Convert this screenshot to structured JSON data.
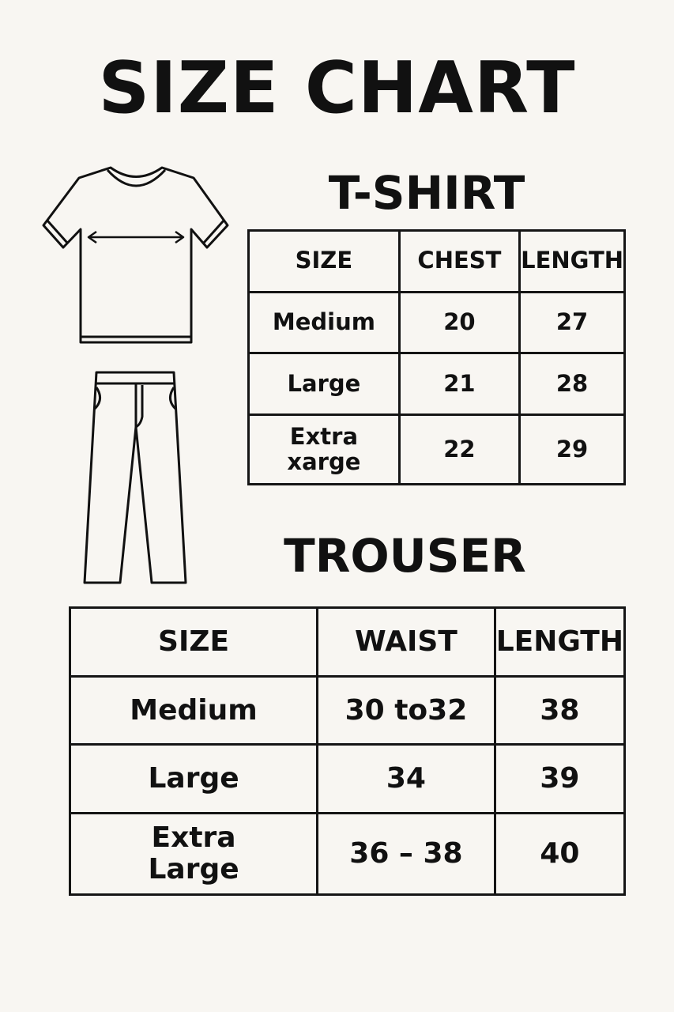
{
  "title": "SIZE CHART",
  "tshirt": {
    "heading": "T-SHIRT",
    "icon": "tshirt-icon",
    "headers": [
      "SIZE",
      "CHEST",
      "LENGTH"
    ],
    "rows": [
      [
        "Medium",
        "20",
        "27"
      ],
      [
        "Large",
        "21",
        "28"
      ],
      [
        "Extra xarge",
        "22",
        "29"
      ]
    ]
  },
  "trouser": {
    "heading": "TROUSER",
    "icon": "trousers-icon",
    "headers": [
      "SIZE",
      "WAIST",
      "LENGTH"
    ],
    "rows": [
      [
        "Medium",
        "30 to32",
        "38"
      ],
      [
        "Large",
        "34",
        "39"
      ],
      [
        "Extra Large",
        "36 – 38",
        "40"
      ]
    ]
  },
  "colors": {
    "background": "#f8f6f2",
    "ink": "#111111"
  }
}
